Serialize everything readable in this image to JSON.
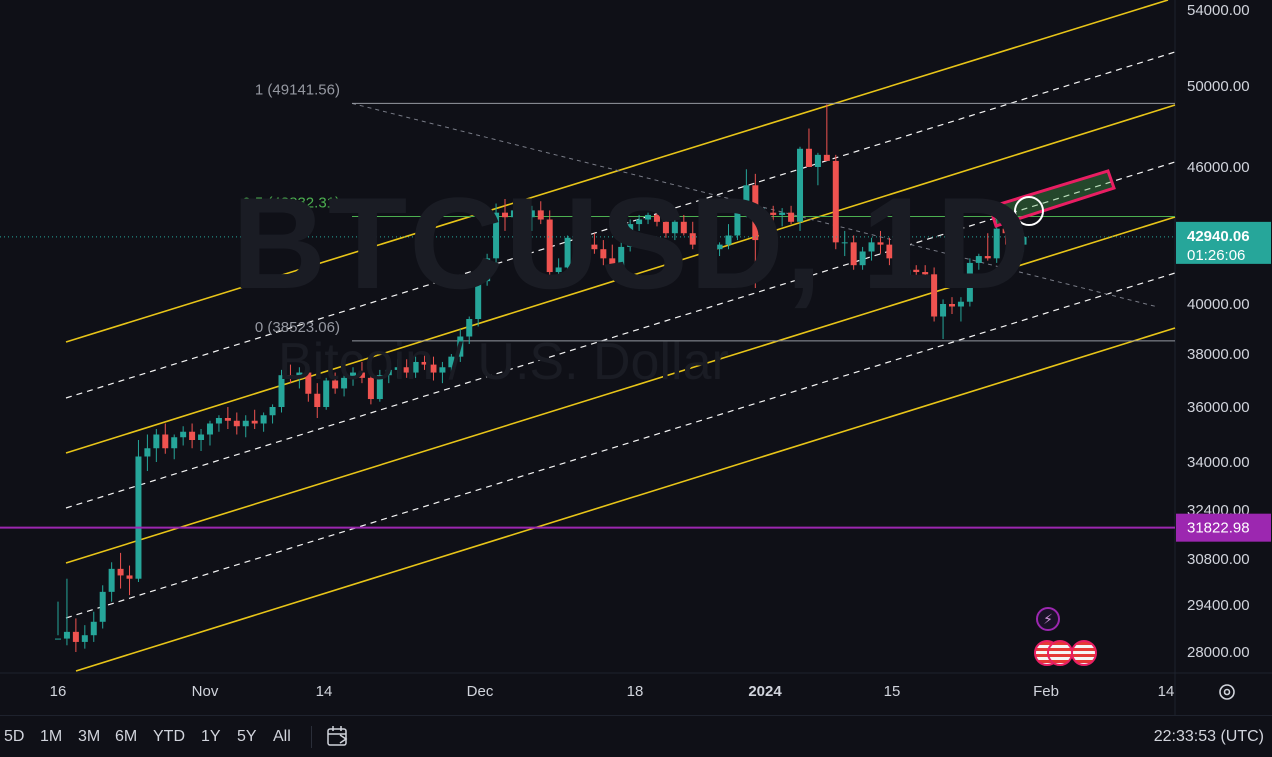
{
  "chart_data": {
    "type": "candlestick",
    "symbol_watermark": "BTCUSD, 1D",
    "description_watermark": "Bitcoin / U.S. Dollar",
    "x_tick_labels": [
      "16",
      "Nov",
      "14",
      "Dec",
      "18",
      "2024",
      "15",
      "Feb",
      "14"
    ],
    "y_tick_labels": [
      "54000.00",
      "50000.00",
      "46000.00",
      "40000.00",
      "38000.00",
      "36000.00",
      "34000.00",
      "32400.00",
      "30800.00",
      "29400.00",
      "28000.00"
    ],
    "current_price": "42940.06",
    "countdown": "01:26:06",
    "horizontal_line_price": "31822.98",
    "fib_levels": [
      {
        "label": "1 (49141.56)",
        "price": 49141.56,
        "color": "#9598a1"
      },
      {
        "label": "0.5 (43832.31)",
        "price": 43832.31,
        "color": "#4caf50"
      },
      {
        "label": "0 (38523.06)",
        "price": 38523.06,
        "color": "#9598a1"
      }
    ],
    "candles": [
      [
        26700,
        28500,
        26500,
        28400
      ],
      [
        28400,
        30200,
        28200,
        28600
      ],
      [
        28600,
        29000,
        28000,
        28300
      ],
      [
        28300,
        28800,
        27900,
        28500
      ],
      [
        28500,
        29200,
        28300,
        28900
      ],
      [
        28900,
        30000,
        28700,
        29800
      ],
      [
        29800,
        30700,
        29500,
        30500
      ],
      [
        30500,
        31000,
        29900,
        30300
      ],
      [
        30300,
        30600,
        29700,
        30200
      ],
      [
        30200,
        34800,
        30100,
        34200
      ],
      [
        34200,
        35000,
        33700,
        34500
      ],
      [
        34500,
        35200,
        34000,
        35000
      ],
      [
        35000,
        35400,
        34300,
        34500
      ],
      [
        34500,
        35000,
        34100,
        34900
      ],
      [
        34900,
        35300,
        34600,
        35100
      ],
      [
        35100,
        35400,
        34500,
        34800
      ],
      [
        34800,
        35200,
        34400,
        35000
      ],
      [
        35000,
        35500,
        34600,
        35400
      ],
      [
        35400,
        35700,
        35100,
        35600
      ],
      [
        35600,
        36000,
        35200,
        35500
      ],
      [
        35500,
        35800,
        35000,
        35300
      ],
      [
        35300,
        35700,
        34900,
        35500
      ],
      [
        35500,
        35900,
        35200,
        35400
      ],
      [
        35400,
        35800,
        35100,
        35700
      ],
      [
        35700,
        36100,
        35400,
        36000
      ],
      [
        36000,
        37400,
        35800,
        37200
      ],
      [
        37200,
        37600,
        36900,
        37100
      ],
      [
        37100,
        37500,
        36700,
        37300
      ],
      [
        37300,
        37600,
        36200,
        36500
      ],
      [
        36500,
        36900,
        35600,
        36000
      ],
      [
        36000,
        37100,
        35900,
        37000
      ],
      [
        37000,
        37300,
        36500,
        36700
      ],
      [
        36700,
        37300,
        36400,
        37100
      ],
      [
        37100,
        37500,
        36800,
        37300
      ],
      [
        37300,
        37700,
        36900,
        37100
      ],
      [
        37100,
        37400,
        36100,
        36300
      ],
      [
        36300,
        37400,
        36200,
        37200
      ],
      [
        37200,
        37600,
        36900,
        37400
      ],
      [
        37400,
        37800,
        37100,
        37500
      ],
      [
        37500,
        37800,
        37100,
        37300
      ],
      [
        37300,
        37900,
        37100,
        37700
      ],
      [
        37700,
        38100,
        37400,
        37600
      ],
      [
        37600,
        37900,
        37000,
        37300
      ],
      [
        37300,
        37700,
        36900,
        37500
      ],
      [
        37500,
        38000,
        37300,
        37900
      ],
      [
        37900,
        39000,
        37700,
        38700
      ],
      [
        38700,
        39500,
        38400,
        39400
      ],
      [
        39400,
        41400,
        39100,
        41000
      ],
      [
        41000,
        42200,
        40800,
        42000
      ],
      [
        42000,
        44400,
        41800,
        44000
      ],
      [
        44000,
        44600,
        43200,
        43800
      ],
      [
        43800,
        44300,
        43300,
        44100
      ],
      [
        44100,
        44500,
        43600,
        43800
      ],
      [
        43800,
        44300,
        43200,
        44100
      ],
      [
        44100,
        44500,
        43500,
        43700
      ],
      [
        43700,
        44100,
        41000,
        41400
      ],
      [
        41400,
        42000,
        40900,
        41600
      ],
      [
        41600,
        43000,
        41500,
        42900
      ],
      [
        42900,
        43500,
        42600,
        43100
      ],
      [
        43100,
        43400,
        42400,
        42600
      ],
      [
        42600,
        43100,
        42200,
        42400
      ],
      [
        42400,
        42800,
        41700,
        42000
      ],
      [
        42000,
        42600,
        41600,
        41600
      ],
      [
        41600,
        42700,
        41500,
        42500
      ],
      [
        42500,
        43700,
        42300,
        43500
      ],
      [
        43500,
        43900,
        43200,
        43700
      ],
      [
        43700,
        44000,
        43500,
        43900
      ],
      [
        43900,
        44100,
        43400,
        43600
      ],
      [
        43600,
        43900,
        42900,
        43100
      ],
      [
        43100,
        43800,
        42800,
        43600
      ],
      [
        43600,
        43900,
        43000,
        43100
      ],
      [
        43100,
        43600,
        42400,
        42600
      ],
      [
        42600,
        43700,
        42400,
        43500
      ],
      [
        43500,
        43800,
        42200,
        42400
      ],
      [
        42400,
        42700,
        42100,
        42600
      ],
      [
        42600,
        43500,
        42400,
        43000
      ],
      [
        43000,
        44500,
        42800,
        44200
      ],
      [
        44200,
        45900,
        43800,
        45200
      ],
      [
        45200,
        45700,
        40700,
        42800
      ],
      [
        42800,
        44200,
        42500,
        44000
      ],
      [
        44000,
        44300,
        43600,
        43900
      ],
      [
        43900,
        44200,
        43400,
        44000
      ],
      [
        44000,
        44300,
        43500,
        43600
      ],
      [
        43600,
        47000,
        43200,
        46900
      ],
      [
        46900,
        47900,
        46200,
        46000
      ],
      [
        46000,
        46700,
        45200,
        46600
      ],
      [
        46600,
        49100,
        46300,
        46300
      ],
      [
        46300,
        46600,
        42400,
        42700
      ],
      [
        42700,
        43200,
        42100,
        42700
      ],
      [
        42700,
        43000,
        41500,
        41700
      ],
      [
        41700,
        42500,
        41500,
        42300
      ],
      [
        42300,
        42900,
        41900,
        42700
      ],
      [
        42700,
        43200,
        42200,
        42600
      ],
      [
        42600,
        42900,
        41700,
        42000
      ],
      [
        42000,
        42500,
        40900,
        41200
      ],
      [
        41200,
        41800,
        40700,
        41500
      ],
      [
        41500,
        41700,
        41100,
        41400
      ],
      [
        41400,
        41700,
        41000,
        41300
      ],
      [
        41300,
        41600,
        39300,
        39500
      ],
      [
        39500,
        40200,
        38600,
        40000
      ],
      [
        40000,
        40300,
        39600,
        39900
      ],
      [
        39900,
        40300,
        39300,
        40100
      ],
      [
        40100,
        42000,
        39900,
        41800
      ],
      [
        41800,
        42200,
        41500,
        42100
      ],
      [
        42100,
        43100,
        41900,
        42000
      ],
      [
        42000,
        43800,
        41800,
        43300
      ],
      [
        43300,
        43700,
        42600,
        43100
      ],
      [
        43100,
        43300,
        42500,
        42600
      ],
      [
        42600,
        43100,
        42300,
        42940
      ]
    ]
  },
  "bottom_bar": {
    "ranges": [
      "5D",
      "1M",
      "3M",
      "6M",
      "YTD",
      "1Y",
      "5Y",
      "All"
    ],
    "clock": "22:33:53 (UTC)"
  },
  "colors": {
    "up": "#26a69a",
    "down": "#ef5350",
    "channel": "#e8c518",
    "hline": "#9c27b0",
    "target_box": "#e91e63"
  },
  "icons": [
    "calendar-icon",
    "gear-icon",
    "lightning-icon",
    "us-flag-icon"
  ]
}
